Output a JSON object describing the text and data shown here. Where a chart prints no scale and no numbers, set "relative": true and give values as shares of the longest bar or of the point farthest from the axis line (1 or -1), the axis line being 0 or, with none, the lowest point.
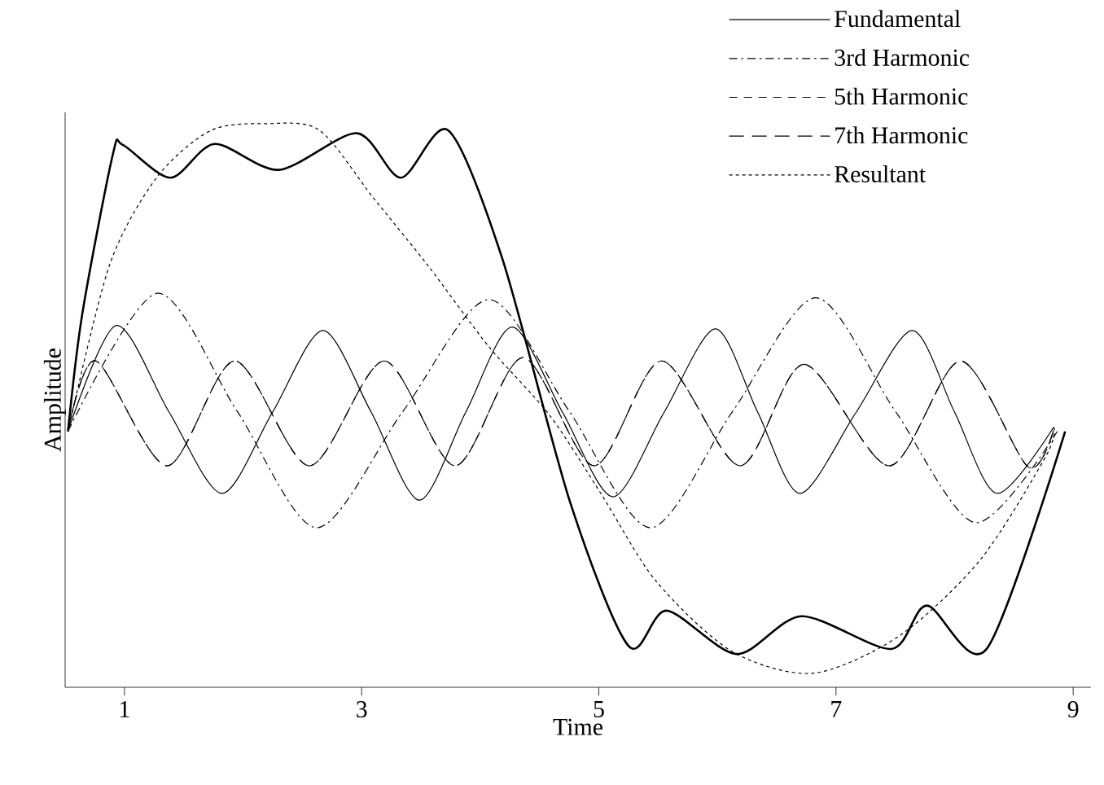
{
  "chart_data": {
    "type": "line",
    "xlabel": "Time",
    "ylabel": "Amplitude",
    "relative": true,
    "xlim": [
      0.5,
      9.15
    ],
    "xticks": [
      1,
      3,
      5,
      7,
      9
    ],
    "legend": "top right",
    "grid": false,
    "marker": "none",
    "series": [
      {
        "name": "Fundamental",
        "color": "#000000",
        "line_style": "solid",
        "x": [
          0.524,
          0.931,
          1.377,
          1.823,
          2.249,
          2.674,
          3.081,
          3.487,
          3.878,
          4.269,
          4.694,
          5.119,
          5.551,
          5.983,
          6.34,
          6.697,
          7.17,
          7.643,
          8.0,
          8.357,
          8.837
        ],
        "values": [
          0.454,
          0.642,
          0.488,
          0.344,
          0.488,
          0.633,
          0.488,
          0.332,
          0.488,
          0.639,
          0.488,
          0.338,
          0.488,
          0.636,
          0.488,
          0.344,
          0.488,
          0.633,
          0.488,
          0.344,
          0.462
        ]
      },
      {
        "name": "3rd Harmonic",
        "color": "#000000",
        "line_style": "dashdot",
        "x": [
          0.524,
          1.274,
          1.95,
          2.623,
          3.35,
          4.074,
          4.75,
          5.435,
          6.13,
          6.83,
          7.5,
          8.178,
          8.866
        ],
        "values": [
          0.454,
          0.699,
          0.49,
          0.283,
          0.49,
          0.688,
          0.49,
          0.283,
          0.49,
          0.691,
          0.49,
          0.292,
          0.454
        ]
      },
      {
        "name": "5th Harmonic",
        "color": "#000000",
        "line_style": "dashed",
        "x": [
          0.524,
          0.76,
          1.36,
          1.93,
          2.56,
          3.19,
          3.79,
          4.36,
          4.96,
          5.53,
          6.19,
          6.73,
          7.45,
          8.05,
          8.62,
          8.84
        ],
        "values": [
          0.454,
          0.579,
          0.393,
          0.579,
          0.393,
          0.579,
          0.393,
          0.585,
          0.393,
          0.579,
          0.393,
          0.573,
          0.393,
          0.579,
          0.391,
          0.46
        ]
      },
      {
        "name": "7th Harmonic",
        "color": "#000000",
        "line_style": "longdashed",
        "x": [
          0.524,
          0.76,
          1.36,
          1.93,
          2.56,
          3.19,
          3.79,
          4.36,
          4.96,
          5.53,
          6.19,
          6.73,
          7.45,
          8.05,
          8.62,
          8.84
        ],
        "values": [
          0.454,
          0.579,
          0.393,
          0.579,
          0.393,
          0.579,
          0.393,
          0.585,
          0.393,
          0.579,
          0.393,
          0.573,
          0.393,
          0.579,
          0.391,
          0.46
        ]
      },
      {
        "name": "Resultant",
        "color": "#000000",
        "line_style": "dotted",
        "x": [
          0.524,
          0.874,
          1.274,
          1.73,
          2.2,
          2.646,
          3.1,
          3.56,
          4.074,
          4.584,
          5.02,
          5.48,
          6.12,
          6.807,
          7.54,
          8.22,
          8.77,
          8.84
        ],
        "values": [
          0.454,
          0.749,
          0.905,
          0.988,
          1.0,
          0.988,
          0.868,
          0.748,
          0.604,
          0.483,
          0.343,
          0.189,
          0.064,
          0.025,
          0.092,
          0.227,
          0.41,
          0.46
        ]
      },
      {
        "color": "#000000",
        "line_style": "solid",
        "x": [
          0.524,
          0.645,
          0.903,
          0.988,
          1.388,
          1.759,
          2.303,
          2.96,
          3.332,
          3.731,
          4.187,
          4.76,
          5.252,
          5.572,
          6.162,
          6.71,
          7.465,
          7.767,
          8.27,
          8.932
        ],
        "values": [
          0.454,
          0.663,
          0.946,
          0.962,
          0.904,
          0.964,
          0.918,
          0.983,
          0.904,
          0.988,
          0.76,
          0.327,
          0.073,
          0.136,
          0.059,
          0.126,
          0.068,
          0.145,
          0.068,
          0.454
        ]
      }
    ]
  }
}
